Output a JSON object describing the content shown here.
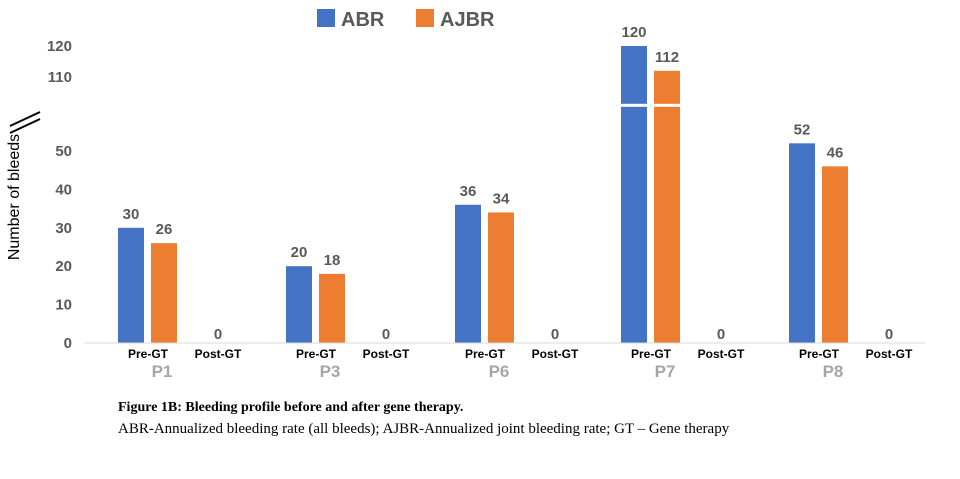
{
  "chart_data": {
    "type": "bar",
    "title": "",
    "xlabel": "",
    "ylabel": "Number of bleeds",
    "ylim": [
      0,
      120
    ],
    "axis_break": {
      "from": 55,
      "to": 105
    },
    "yticks": [
      0,
      10,
      20,
      30,
      40,
      50,
      110,
      120
    ],
    "grid": false,
    "legend_position": "top-center",
    "colors": {
      "ABR": "#4472c4",
      "AJBR": "#ed7d31"
    },
    "groups": [
      "P1",
      "P3",
      "P6",
      "P7",
      "P8"
    ],
    "subcategories": [
      "Pre-GT",
      "Post-GT"
    ],
    "series": [
      {
        "name": "ABR",
        "values": {
          "P1": [
            30,
            0
          ],
          "P3": [
            20,
            0
          ],
          "P6": [
            36,
            0
          ],
          "P7": [
            120,
            0
          ],
          "P8": [
            52,
            0
          ]
        }
      },
      {
        "name": "AJBR",
        "values": {
          "P1": [
            26,
            0
          ],
          "P3": [
            18,
            0
          ],
          "P6": [
            34,
            0
          ],
          "P7": [
            112,
            0
          ],
          "P8": [
            46,
            0
          ]
        }
      }
    ],
    "post_gt_label": "0"
  },
  "caption": {
    "title": "Figure 1B: Bleeding profile before and after gene therapy.",
    "body": "ABR-Annualized bleeding rate (all bleeds); AJBR-Annualized joint bleeding rate; GT – Gene therapy"
  }
}
